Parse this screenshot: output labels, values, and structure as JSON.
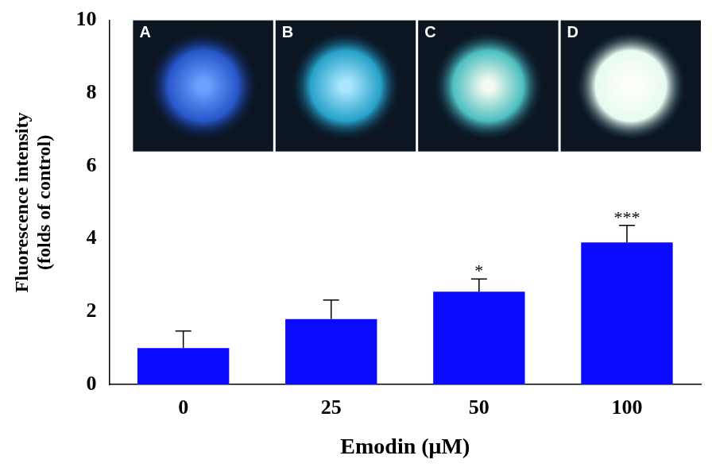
{
  "chart_data": {
    "type": "bar",
    "categories": [
      "0",
      "25",
      "50",
      "100"
    ],
    "values": [
      1.0,
      1.8,
      2.55,
      3.9
    ],
    "error": [
      0.47,
      0.52,
      0.35,
      0.47
    ],
    "significance": [
      null,
      null,
      "*",
      "***"
    ],
    "color": "#0a0aff",
    "x_label": "Emodin (μM)",
    "y_label": [
      "Fluorescence intensity",
      "(folds of control)"
    ],
    "ylim": [
      0,
      10
    ],
    "yticks": [
      0,
      2,
      4,
      6,
      8,
      10
    ],
    "grid": false,
    "inset_panels": [
      "A",
      "B",
      "C",
      "D"
    ]
  }
}
